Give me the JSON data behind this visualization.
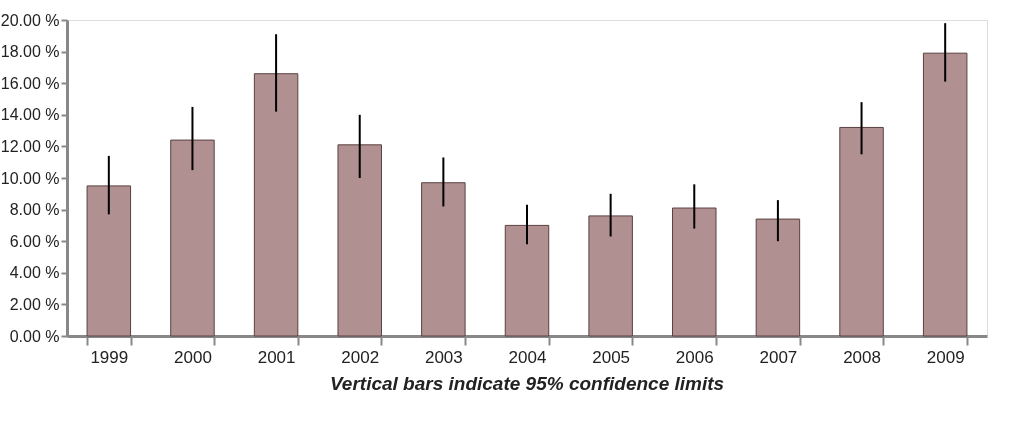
{
  "chart_data": {
    "type": "bar",
    "categories": [
      "1999",
      "2000",
      "2001",
      "2002",
      "2003",
      "2004",
      "2005",
      "2006",
      "2007",
      "2008",
      "2009"
    ],
    "values": [
      9.5,
      12.4,
      16.6,
      12.1,
      9.7,
      7.0,
      7.6,
      8.1,
      7.4,
      13.2,
      17.9
    ],
    "errors": [
      [
        7.7,
        11.4
      ],
      [
        10.5,
        14.5
      ],
      [
        14.2,
        19.1
      ],
      [
        10.0,
        14.0
      ],
      [
        8.2,
        11.3
      ],
      [
        5.8,
        8.3
      ],
      [
        6.3,
        9.0
      ],
      [
        6.8,
        9.6
      ],
      [
        6.0,
        8.6
      ],
      [
        11.5,
        14.8
      ],
      [
        16.1,
        19.8
      ]
    ],
    "color": "#b09090",
    "ylim": [
      0,
      20
    ],
    "yticks": [
      {
        "value": 0,
        "label": "0.00 %"
      },
      {
        "value": 2,
        "label": "2.00 %"
      },
      {
        "value": 4,
        "label": "4.00 %"
      },
      {
        "value": 6,
        "label": "6.00 %"
      },
      {
        "value": 8,
        "label": "8.00 %"
      },
      {
        "value": 10,
        "label": "10.00 %"
      },
      {
        "value": 12,
        "label": "12.00 %"
      },
      {
        "value": 14,
        "label": "14.00 %"
      },
      {
        "value": 16,
        "label": "16.00 %"
      },
      {
        "value": 18,
        "label": "18.00 %"
      },
      {
        "value": 20,
        "label": "20.00 %"
      }
    ],
    "grid": false,
    "annotations": [
      "Vertical bars indicate 95% confidence limits"
    ]
  }
}
